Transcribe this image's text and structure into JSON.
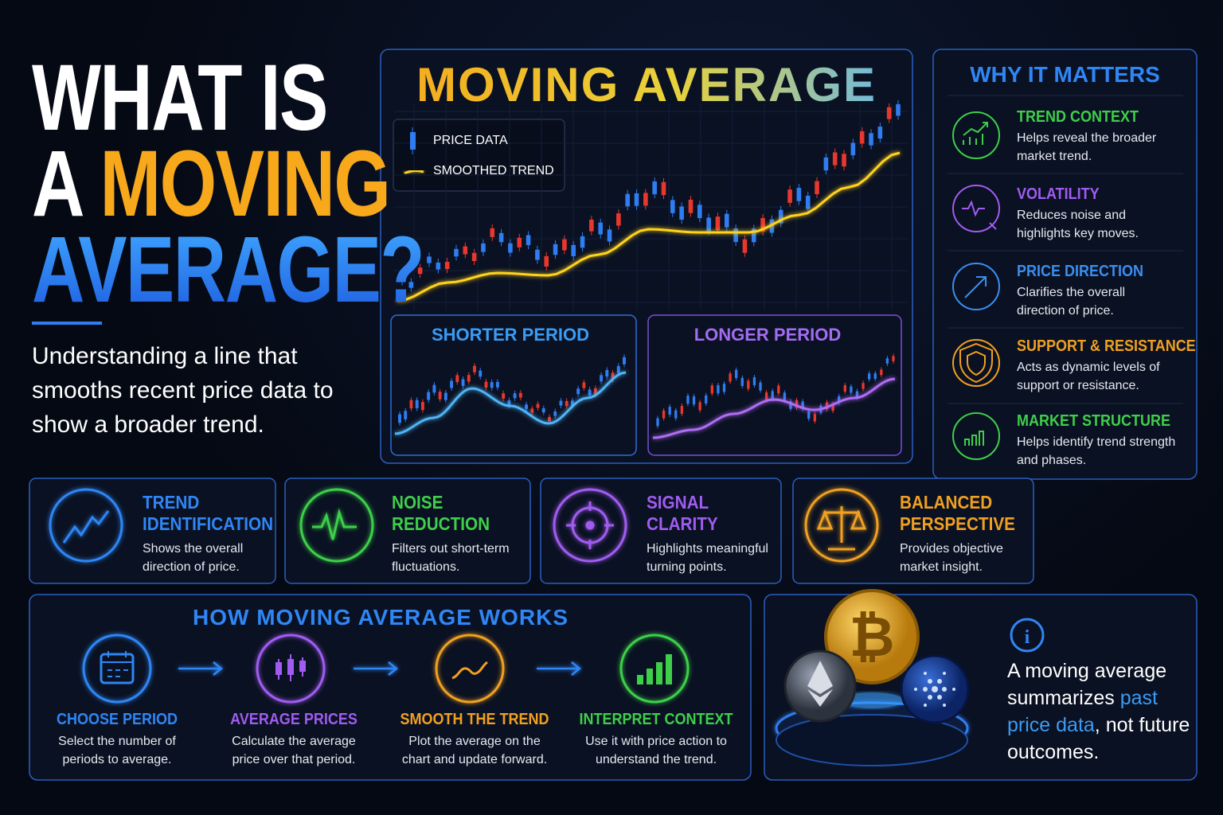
{
  "hero": {
    "line1": "WHAT IS",
    "line2a": "A",
    "line2b": "MOVING",
    "line3": "AVERAGE?",
    "description": "Understanding a line that smooths recent price data to show a broader trend."
  },
  "main_chart": {
    "title": "MOVING AVERAGE",
    "legend": [
      "PRICE DATA",
      "SMOOTHED TREND"
    ]
  },
  "sub_charts": [
    {
      "title": "SHORTER PERIOD"
    },
    {
      "title": "LONGER PERIOD"
    }
  ],
  "why_it_matters": {
    "title": "WHY IT MATTERS",
    "items": [
      {
        "title": "TREND CONTEXT",
        "description": "Helps reveal the broader market trend."
      },
      {
        "title": "VOLATILITY",
        "description": "Reduces noise and highlights key moves."
      },
      {
        "title": "PRICE DIRECTION",
        "description": "Clarifies the overall direction of price."
      },
      {
        "title": "SUPPORT & RESISTANCE",
        "description": "Acts as dynamic levels of support or resistance."
      },
      {
        "title": "MARKET STRUCTURE",
        "description": "Helps identify trend strength and phases."
      }
    ]
  },
  "features": [
    {
      "title": "TREND IDENTIFICATION",
      "description": "Shows the overall direction of price."
    },
    {
      "title": "NOISE REDUCTION",
      "description": "Filters out short-term fluctuations."
    },
    {
      "title": "SIGNAL CLARITY",
      "description": "Highlights meaningful turning points."
    },
    {
      "title": "BALANCED PERSPECTIVE",
      "description": "Provides objective market insight."
    }
  ],
  "how_it_works": {
    "title": "HOW MOVING AVERAGE WORKS",
    "steps": [
      {
        "title": "CHOOSE PERIOD",
        "description": "Select the number of periods to average."
      },
      {
        "title": "AVERAGE PRICES",
        "description": "Calculate the average price over that period."
      },
      {
        "title": "SMOOTH THE TREND",
        "description": "Plot the average on the chart and update forward."
      },
      {
        "title": "INTERPRET CONTEXT",
        "description": "Use it with price action to understand the trend."
      }
    ]
  },
  "note": {
    "before": "A moving average summarizes",
    "highlight": "past price data",
    "after": ", not future outcomes."
  }
}
